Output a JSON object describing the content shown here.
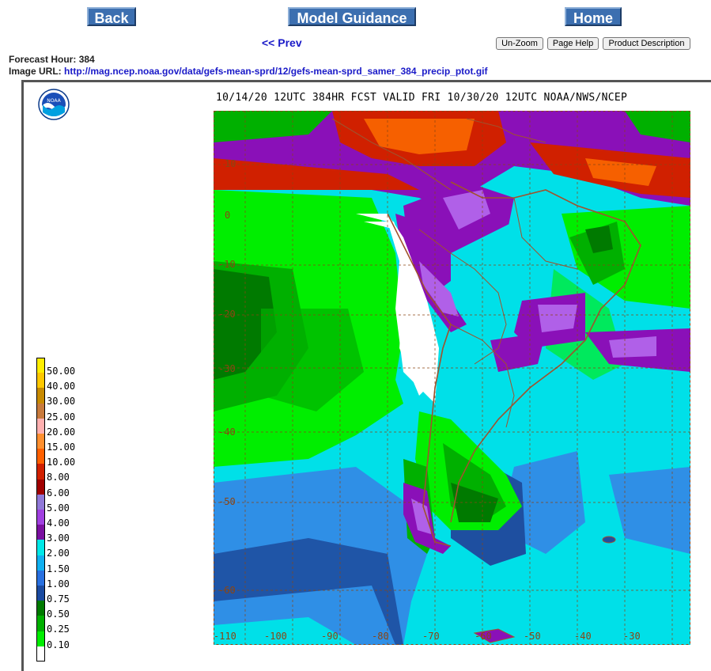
{
  "nav": {
    "back_label": "Back",
    "model_label": "Model Guidance",
    "home_label": "Home",
    "prev_label": "<< Prev",
    "unzoom_label": "Un-Zoom",
    "help_label": "Page Help",
    "product_label": "Product Description"
  },
  "meta": {
    "hour_label": "Forecast Hour:",
    "hour_value": "384",
    "url_label": "Image URL:",
    "url_value": "http://mag.ncep.noaa.gov/data/gefs-mean-sprd/12/gefs-mean-sprd_samer_384_precip_ptot.gif"
  },
  "map": {
    "title": "10/14/20 12UTC 384HR FCST VALID FRI 10/30/20 12UTC NOAA/NWS/NCEP",
    "logo_text": "NOAA",
    "lat_labels": [
      "10",
      "0",
      "-10",
      "-20",
      "-30",
      "-40",
      "-50",
      "-60"
    ],
    "lon_labels": [
      "-110",
      "-100",
      "-90",
      "-80",
      "-70",
      "-60",
      "-50",
      "-40",
      "-30"
    ],
    "colors": {
      "sea_dark": "#1e4fa0",
      "sea_mid": "#2f8fe6",
      "sea_light": "#00e0e8",
      "green_bright": "#00ee00",
      "green_mid": "#00b000",
      "green_dark": "#007a00",
      "purple": "#8a10b8",
      "violet": "#b060e8",
      "red": "#d02000",
      "orange": "#ff7000",
      "dry": "#ffffff",
      "border": "#a0522d"
    }
  },
  "legend": {
    "items": [
      {
        "label": "50.00",
        "color": "#ffee00"
      },
      {
        "label": "40.00",
        "color": "#ffc800"
      },
      {
        "label": "30.00",
        "color": "#c88a00"
      },
      {
        "label": "25.00",
        "color": "#c87a3c"
      },
      {
        "label": "20.00",
        "color": "#ffb0b0"
      },
      {
        "label": "15.00",
        "color": "#ff9030"
      },
      {
        "label": "10.00",
        "color": "#ff6000"
      },
      {
        "label": "8.00",
        "color": "#d02000"
      },
      {
        "label": "6.00",
        "color": "#a00000"
      },
      {
        "label": "5.00",
        "color": "#9078d8"
      },
      {
        "label": "4.00",
        "color": "#a040e0"
      },
      {
        "label": "3.00",
        "color": "#7a10a0"
      },
      {
        "label": "2.00",
        "color": "#00e8e8"
      },
      {
        "label": "1.50",
        "color": "#10b0f0"
      },
      {
        "label": "1.00",
        "color": "#2870e0"
      },
      {
        "label": "0.75",
        "color": "#1a4aa0"
      },
      {
        "label": "0.50",
        "color": "#007a00"
      },
      {
        "label": "0.25",
        "color": "#00b000"
      },
      {
        "label": "0.10",
        "color": "#00ee00"
      },
      {
        "label": "",
        "color": "#ffffff"
      }
    ]
  }
}
